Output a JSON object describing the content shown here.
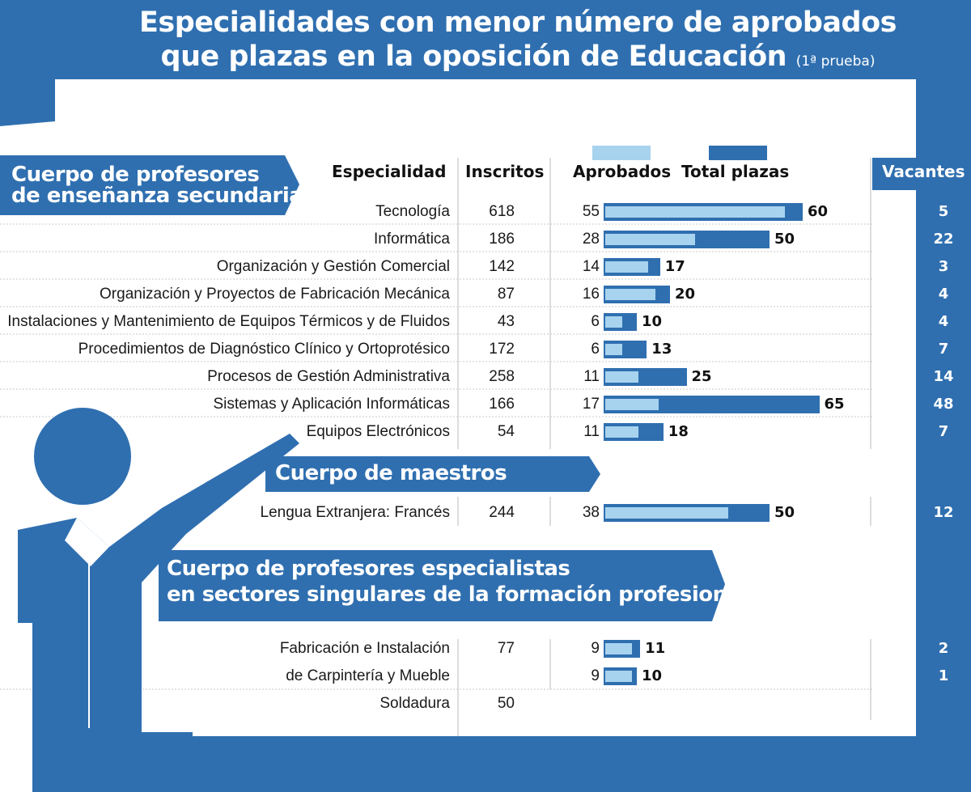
{
  "title": {
    "line1": "Especialidades con menor número de aprobados",
    "line2": "que plazas en la oposición de Educación",
    "suffix": "(1ª prueba)"
  },
  "headers": {
    "especialidad": "Especialidad",
    "inscritos": "Inscritos",
    "aprobados": "Aprobados",
    "total_plazas": "Total plazas",
    "vacantes": "Vacantes"
  },
  "colors": {
    "primary_blue": "#2f6fb0",
    "light_blue": "#a7d3ee",
    "dark_text": "#1a1a1a"
  },
  "sections": {
    "secundaria": {
      "line1": "Cuerpo de profesores",
      "line2": "de enseñanza secundaria"
    },
    "maestros": {
      "line1": "Cuerpo de maestros"
    },
    "especialistas": {
      "line1": "Cuerpo de profesores especialistas",
      "line2": "en sectores singulares de la formación profesional"
    }
  },
  "rows": [
    {
      "especialidad": "Tecnología",
      "inscritos": "618",
      "aprobados": 55,
      "plazas": 60,
      "vacantes": "5"
    },
    {
      "especialidad": "Informática",
      "inscritos": "186",
      "aprobados": 28,
      "plazas": 50,
      "vacantes": "22"
    },
    {
      "especialidad": "Organización y Gestión Comercial",
      "inscritos": "142",
      "aprobados": 14,
      "plazas": 17,
      "vacantes": "3"
    },
    {
      "especialidad": "Organización y Proyectos de Fabricación Mecánica",
      "inscritos": "87",
      "aprobados": 16,
      "plazas": 20,
      "vacantes": "4"
    },
    {
      "especialidad": "Instalaciones y Mantenimiento de Equipos Térmicos y de Fluidos",
      "inscritos": "43",
      "aprobados": 6,
      "plazas": 10,
      "vacantes": "4"
    },
    {
      "especialidad": "Procedimientos de Diagnóstico Clínico y Ortoprotésico",
      "inscritos": "172",
      "aprobados": 6,
      "plazas": 13,
      "vacantes": "7"
    },
    {
      "especialidad": "Procesos de Gestión Administrativa",
      "inscritos": "258",
      "aprobados": 11,
      "plazas": 25,
      "vacantes": "14"
    },
    {
      "especialidad": "Sistemas y Aplicación Informáticas",
      "inscritos": "166",
      "aprobados": 17,
      "plazas": 65,
      "vacantes": "48"
    },
    {
      "especialidad": "Equipos Electrónicos",
      "inscritos": "54",
      "aprobados": 11,
      "plazas": 18,
      "vacantes": "7"
    },
    {
      "especialidad": "Lengua Extranjera: Francés",
      "inscritos": "244",
      "aprobados": 38,
      "plazas": 50,
      "vacantes": "12"
    },
    {
      "especialidad": "Fabricación e Instalación",
      "inscritos": "77",
      "aprobados": 9,
      "plazas": 11,
      "vacantes": "2"
    },
    {
      "especialidad": "de Carpintería y Mueble",
      "inscritos": "",
      "aprobados": 9,
      "plazas": 10,
      "vacantes": "1"
    },
    {
      "especialidad": "Soldadura",
      "inscritos": "50",
      "aprobados": null,
      "plazas": null,
      "vacantes": ""
    }
  ],
  "chart_data": {
    "type": "bar",
    "title": "Especialidades con menor número de aprobados que plazas en la oposición de Educación (1ª prueba)",
    "categories": [
      "Tecnología",
      "Informática",
      "Organización y Gestión Comercial",
      "Organización y Proyectos de Fabricación Mecánica",
      "Instalaciones y Mantenimiento de Equipos Térmicos y de Fluidos",
      "Procedimientos de Diagnóstico Clínico y Ortoprotésico",
      "Procesos de Gestión Administrativa",
      "Sistemas y Aplicación Informáticas",
      "Equipos Electrónicos",
      "Lengua Extranjera: Francés",
      "Fabricación e Instalación",
      "de Carpintería y Mueble"
    ],
    "series": [
      {
        "name": "Aprobados",
        "values": [
          55,
          28,
          14,
          16,
          6,
          6,
          11,
          17,
          11,
          38,
          9,
          9
        ]
      },
      {
        "name": "Total plazas",
        "values": [
          60,
          50,
          17,
          20,
          10,
          13,
          25,
          65,
          18,
          50,
          11,
          10
        ]
      }
    ],
    "orientation": "horizontal",
    "xlim": [
      0,
      65
    ],
    "legend": "top"
  }
}
